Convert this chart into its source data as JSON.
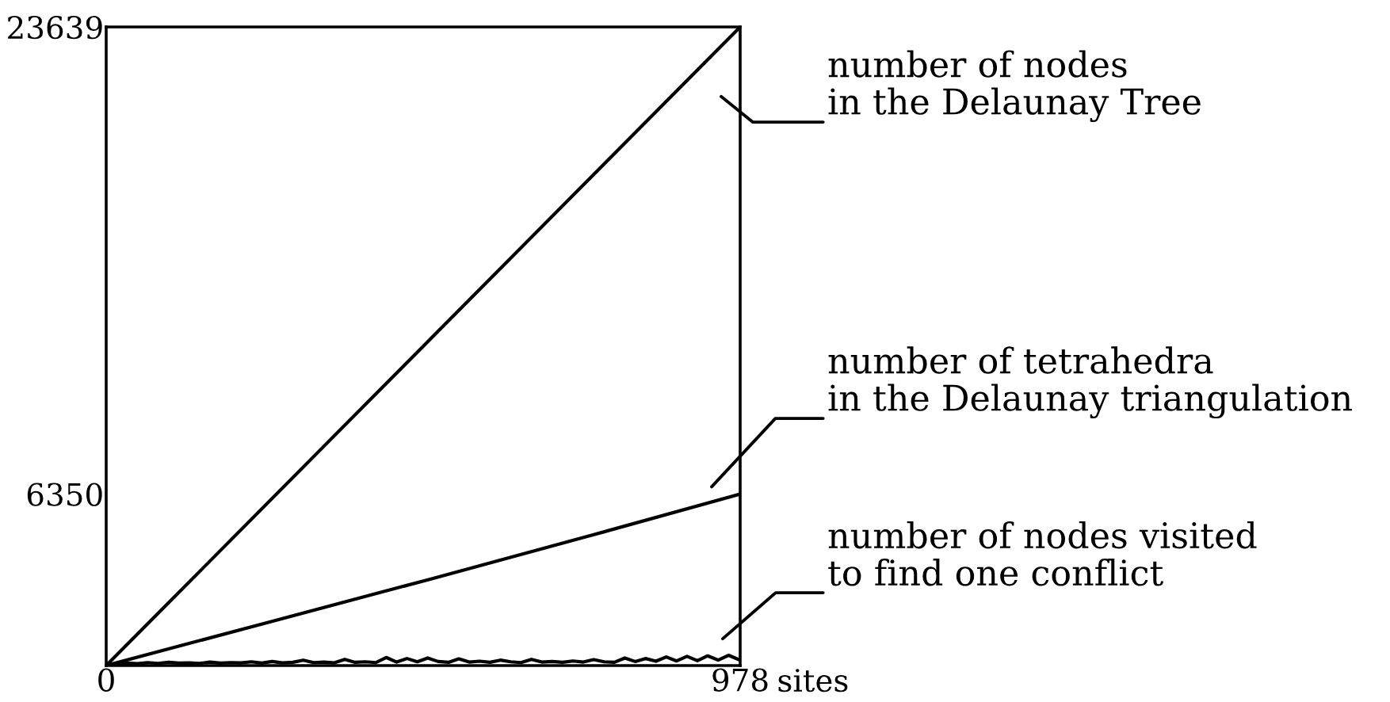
{
  "chart_data": {
    "type": "line",
    "xlim": [
      0,
      978
    ],
    "ylim": [
      0,
      23639
    ],
    "xticks": [
      0,
      978
    ],
    "yticks": [
      6350,
      23639
    ],
    "xlabel": "sites",
    "series": [
      {
        "name": "number of nodes\nin the Delaunay Tree",
        "color": "#000000",
        "x": [
          0,
          978
        ],
        "values": [
          0,
          23639
        ]
      },
      {
        "name": "number of tetrahedra\nin the Delaunay triangulation",
        "color": "#000000",
        "x": [
          0,
          250,
          500,
          750,
          978
        ],
        "values": [
          0,
          1600,
          3200,
          4830,
          6350
        ]
      },
      {
        "name": "number of nodes visited\nto find one conflict",
        "color": "#000000",
        "x": [
          0,
          16,
          32,
          48,
          64,
          80,
          96,
          112,
          128,
          144,
          160,
          176,
          192,
          208,
          224,
          240,
          256,
          272,
          288,
          304,
          320,
          336,
          352,
          368,
          384,
          400,
          416,
          432,
          448,
          464,
          480,
          496,
          512,
          528,
          544,
          560,
          576,
          592,
          608,
          624,
          640,
          656,
          672,
          688,
          704,
          720,
          736,
          752,
          768,
          784,
          800,
          816,
          832,
          848,
          864,
          880,
          896,
          912,
          928,
          944,
          960,
          976,
          978
        ],
        "values": [
          0,
          60,
          90,
          70,
          110,
          80,
          120,
          90,
          100,
          80,
          130,
          90,
          110,
          100,
          140,
          90,
          150,
          100,
          120,
          200,
          110,
          130,
          100,
          230,
          120,
          140,
          110,
          300,
          130,
          260,
          140,
          280,
          150,
          120,
          250,
          130,
          160,
          120,
          200,
          140,
          110,
          230,
          130,
          150,
          120,
          170,
          130,
          220,
          140,
          120,
          280,
          150,
          260,
          160,
          320,
          170,
          340,
          180,
          360,
          200,
          380,
          220,
          200
        ]
      }
    ]
  }
}
